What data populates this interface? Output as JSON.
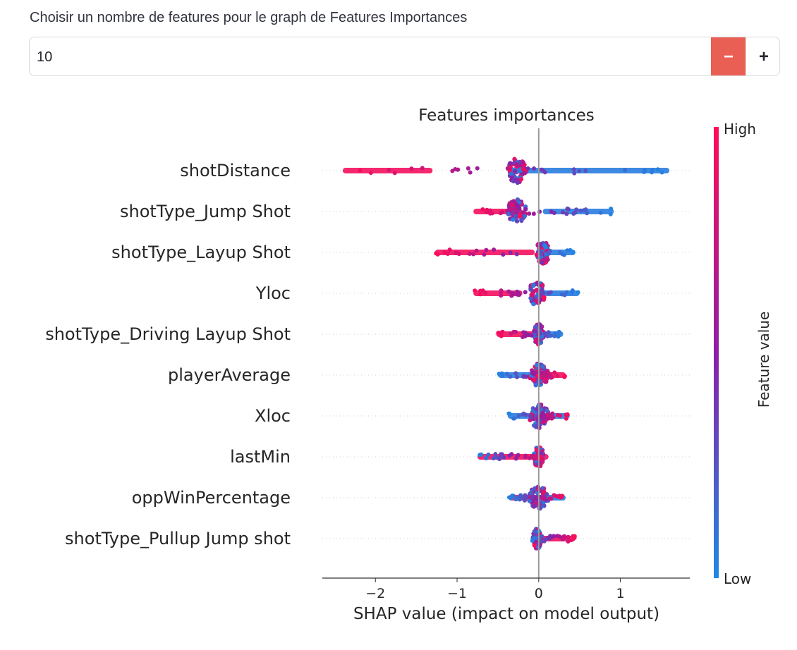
{
  "input": {
    "label": "Choisir un nombre de features pour le graph de Features Importances",
    "value": "10",
    "minus_label": "−",
    "plus_label": "+",
    "minus_color": "#ea5f54"
  },
  "chart_data": {
    "type": "scatter",
    "subtype": "shap-beeswarm",
    "title": "Features importances",
    "xlabel": "SHAP value (impact on model output)",
    "xlim": [
      -2.65,
      1.85
    ],
    "xticks": [
      {
        "value": -2,
        "label": "−2"
      },
      {
        "value": -1,
        "label": "−1"
      },
      {
        "value": 0,
        "label": "0"
      },
      {
        "value": 1,
        "label": "1"
      }
    ],
    "colorbar": {
      "label": "Feature value",
      "high_label": "High",
      "low_label": "Low",
      "high_color": "#ff0d57",
      "mid_color": "#8c1fa6",
      "low_color": "#1e88e5"
    },
    "features": [
      {
        "name": "shotDistance",
        "min": -2.4,
        "max": 1.6,
        "high_min": -2.4,
        "high_max": -1.3,
        "low_min": -0.3,
        "low_max": 1.6,
        "core": -0.27,
        "core_width": 0.12,
        "core_height": 0.6
      },
      {
        "name": "shotType_Jump Shot",
        "min": -0.8,
        "max": 0.92,
        "high_min": -0.8,
        "high_max": -0.2,
        "low_min": 0.05,
        "low_max": 0.92,
        "core": -0.27,
        "core_width": 0.12,
        "core_height": 0.6
      },
      {
        "name": "shotType_Layup Shot",
        "min": -1.27,
        "max": 0.45,
        "high_min": -1.27,
        "high_max": -0.05,
        "low_min": 0.0,
        "low_max": 0.45,
        "core": 0.05,
        "core_width": 0.08,
        "core_height": 0.55
      },
      {
        "name": "Yloc",
        "min": -0.8,
        "max": 0.5,
        "high_min": -0.8,
        "high_max": -0.2,
        "low_min": 0.0,
        "low_max": 0.5,
        "core": -0.02,
        "core_width": 0.1,
        "core_height": 0.6
      },
      {
        "name": "shotType_Driving Layup Shot",
        "min": -0.52,
        "max": 0.3,
        "high_min": -0.52,
        "high_max": 0.0,
        "low_min": 0.0,
        "low_max": 0.3,
        "core": 0.0,
        "core_width": 0.06,
        "core_height": 0.5
      },
      {
        "name": "playerAverage",
        "min": -0.5,
        "max": 0.33,
        "high_min": 0.0,
        "high_max": 0.33,
        "low_min": -0.5,
        "low_max": 0.0,
        "core": 0.0,
        "core_width": 0.12,
        "core_height": 0.55
      },
      {
        "name": "Xloc",
        "min": -0.38,
        "max": 0.38,
        "high_min": -0.1,
        "high_max": 0.1,
        "low_min": -0.38,
        "low_max": 0.38,
        "core": 0.0,
        "core_width": 0.12,
        "core_height": 0.6
      },
      {
        "name": "lastMin",
        "min": -0.75,
        "max": 0.12,
        "high_min": -0.75,
        "high_max": 0.12,
        "low_min": -0.05,
        "low_max": 0.05,
        "core": 0.0,
        "core_width": 0.06,
        "core_height": 0.5
      },
      {
        "name": "oppWinPercentage",
        "min": -0.37,
        "max": 0.33,
        "high_min": -0.37,
        "high_max": 0.05,
        "low_min": -0.05,
        "low_max": 0.33,
        "core": 0.0,
        "core_width": 0.12,
        "core_height": 0.55
      },
      {
        "name": "shotType_Pullup Jump shot",
        "min": -0.1,
        "max": 0.45,
        "high_min": 0.0,
        "high_max": 0.45,
        "low_min": -0.1,
        "low_max": 0.03,
        "core": -0.02,
        "core_width": 0.05,
        "core_height": 0.5
      }
    ]
  }
}
